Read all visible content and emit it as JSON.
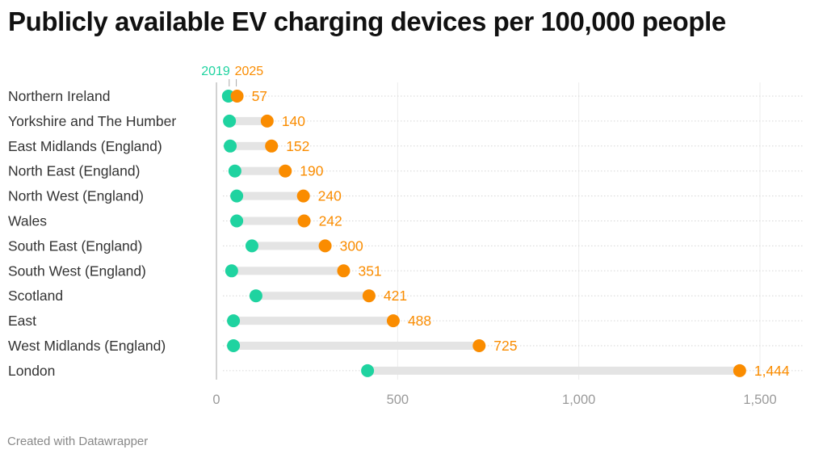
{
  "title": "Publicly available EV charging devices per 100,000 people",
  "footer": "Created with Datawrapper",
  "colors": {
    "start": "#1fd3a0",
    "end": "#fa8c00",
    "range_bar": "#e4e4e4",
    "grid": "#dddddd",
    "text": "#333333",
    "tick": "#9a9a9a"
  },
  "chart_data": {
    "type": "range_dot",
    "title": "Publicly available EV charging devices per 100,000 people",
    "xlabel": "",
    "ylabel": "",
    "xlim": [
      0,
      1600
    ],
    "x_ticks": [
      0,
      500,
      1000,
      1500
    ],
    "x_tick_labels": [
      "0",
      "500",
      "1,000",
      "1,500"
    ],
    "grid": true,
    "legend": {
      "placement": "top-left-of-first-row",
      "entries": [
        "2019",
        "2025"
      ]
    },
    "categories": [
      "Northern Ireland",
      "Yorkshire and The Humber",
      "East Midlands (England)",
      "North East (England)",
      "North West (England)",
      "Wales",
      "South East (England)",
      "South West (England)",
      "Scotland",
      "East",
      "West Midlands (England)",
      "London"
    ],
    "series": [
      {
        "name": "2019",
        "values": [
          33,
          36,
          38,
          51,
          56,
          56,
          98,
          42,
          109,
          47,
          47,
          417
        ]
      },
      {
        "name": "2025",
        "values": [
          57,
          140,
          152,
          190,
          240,
          242,
          300,
          351,
          421,
          488,
          725,
          1444
        ]
      }
    ],
    "value_labels": [
      "57",
      "140",
      "152",
      "190",
      "240",
      "242",
      "300",
      "351",
      "421",
      "488",
      "725",
      "1,444"
    ]
  }
}
